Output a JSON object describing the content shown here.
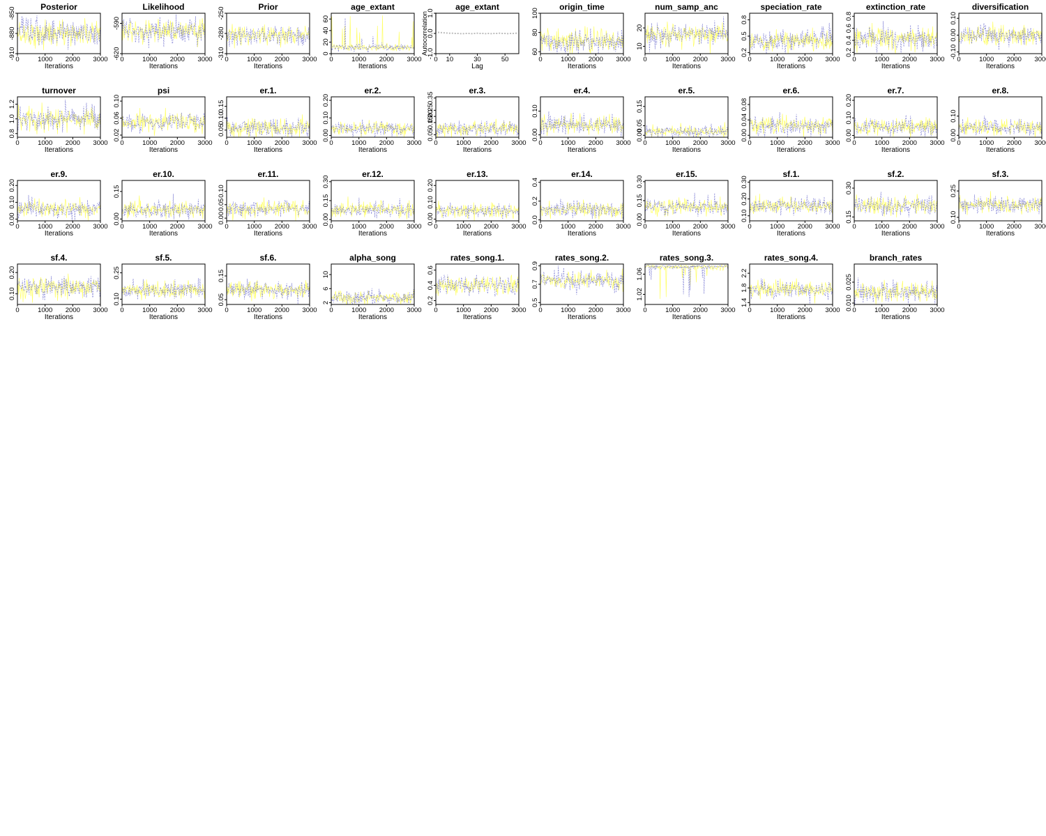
{
  "colors": {
    "chain1": "#ffff55",
    "chain2": "#6666cc",
    "acf_points": "#bbbbbb",
    "axis": "#000000"
  },
  "chart_data": [
    {
      "type": "line",
      "title": "Posterior",
      "xlabel": "Iterations",
      "xlim": [
        0,
        3000
      ],
      "xticks": [
        "0",
        "1000",
        "2000",
        "3000"
      ],
      "ylim": [
        -910,
        -850
      ],
      "yticks": [
        "-910",
        "-880",
        "-850"
      ],
      "center": -880,
      "spread": 10,
      "chains": 2
    },
    {
      "type": "line",
      "title": "Likelihood",
      "xlabel": "Iterations",
      "xlim": [
        0,
        3000
      ],
      "xticks": [
        "0",
        "1000",
        "2000",
        "3000"
      ],
      "ylim": [
        -620,
        -580
      ],
      "yticks": [
        "-620",
        "-590"
      ],
      "center": -597,
      "spread": 6,
      "chains": 2
    },
    {
      "type": "line",
      "title": "Prior",
      "xlabel": "Iterations",
      "xlim": [
        0,
        3000
      ],
      "xticks": [
        "0",
        "1000",
        "2000",
        "3000"
      ],
      "ylim": [
        -310,
        -250
      ],
      "yticks": [
        "-310",
        "-280",
        "-250"
      ],
      "center": -283,
      "spread": 7,
      "chains": 2
    },
    {
      "type": "line",
      "title": "age_extant",
      "xlabel": "Iterations",
      "xlim": [
        0,
        3000
      ],
      "xticks": [
        "0",
        "1000",
        "2000",
        "3000"
      ],
      "ylim": [
        0,
        70
      ],
      "yticks": [
        "0",
        "20",
        "40",
        "60"
      ],
      "center": 11,
      "spread": 3,
      "spikes": true,
      "chains": 2
    },
    {
      "type": "scatter",
      "title": "age_extant",
      "xlabel": "Lag",
      "ylabel": "Autocorrelation",
      "xlim": [
        0,
        60
      ],
      "xticks": [
        "0",
        "10",
        "30",
        "50"
      ],
      "ylim": [
        -1,
        1
      ],
      "yticks": [
        "-1.0",
        "0.0",
        "1.0"
      ],
      "acf": [
        1.0,
        0.05,
        0.04,
        0.03,
        0.02,
        0.01,
        0.01,
        0.0,
        0.0,
        -0.01,
        -0.01,
        0.0,
        0.0,
        -0.01,
        0.0,
        0.01,
        0.0,
        0.0,
        -0.01,
        0.0,
        -0.01,
        0.0,
        0.0,
        0.01,
        0.0,
        0.0,
        -0.01,
        0.0,
        0.0,
        0.01
      ]
    },
    {
      "type": "line",
      "title": "origin_time",
      "xlabel": "Iterations",
      "xlim": [
        0,
        3000
      ],
      "xticks": [
        "0",
        "1000",
        "2000",
        "3000"
      ],
      "ylim": [
        58,
        100
      ],
      "yticks": [
        "60",
        "80",
        "100"
      ],
      "center": 70,
      "spread": 6,
      "chains": 2
    },
    {
      "type": "line",
      "title": "num_samp_anc",
      "xlabel": "Iterations",
      "xlim": [
        0,
        3000
      ],
      "xticks": [
        "0",
        "1000",
        "2000",
        "3000"
      ],
      "ylim": [
        6,
        28
      ],
      "yticks": [
        "10",
        "20"
      ],
      "center": 16,
      "spread": 3,
      "chains": 2
    },
    {
      "type": "line",
      "title": "speciation_rate",
      "xlabel": "Iterations",
      "xlim": [
        0,
        3000
      ],
      "xticks": [
        "0",
        "1000",
        "2000",
        "3000"
      ],
      "ylim": [
        0.18,
        0.92
      ],
      "yticks": [
        "0.2",
        "0.5",
        "0.8"
      ],
      "center": 0.42,
      "spread": 0.1,
      "chains": 2
    },
    {
      "type": "line",
      "title": "extinction_rate",
      "xlabel": "Iterations",
      "xlim": [
        0,
        3000
      ],
      "xticks": [
        "0",
        "1000",
        "2000",
        "3000"
      ],
      "ylim": [
        0.18,
        0.85
      ],
      "yticks": [
        "0.2",
        "0.4",
        "0.6",
        "0.8"
      ],
      "center": 0.42,
      "spread": 0.1,
      "chains": 2
    },
    {
      "type": "line",
      "title": "diversification",
      "xlabel": "Iterations",
      "xlim": [
        0,
        3000
      ],
      "xticks": [
        "0",
        "1000",
        "2000",
        "3000"
      ],
      "ylim": [
        -0.11,
        0.13
      ],
      "yticks": [
        "-0.10",
        "0.00",
        "0.10"
      ],
      "center": 0.0,
      "spread": 0.03,
      "chains": 2
    },
    {
      "type": "line",
      "title": "turnover",
      "xlabel": "Iterations",
      "xlim": [
        0,
        3000
      ],
      "xticks": [
        "0",
        "1000",
        "2000",
        "3000"
      ],
      "ylim": [
        0.75,
        1.3
      ],
      "yticks": [
        "0.8",
        "1.0",
        "1.2"
      ],
      "center": 1.0,
      "spread": 0.08,
      "chains": 2
    },
    {
      "type": "line",
      "title": "psi",
      "xlabel": "Iterations",
      "xlim": [
        0,
        3000
      ],
      "xticks": [
        "0",
        "1000",
        "2000",
        "3000"
      ],
      "ylim": [
        0.015,
        0.11
      ],
      "yticks": [
        "0.02",
        "0.06",
        "0.10"
      ],
      "center": 0.05,
      "spread": 0.012,
      "chains": 2
    },
    {
      "type": "line",
      "title": "er.1.",
      "xlabel": "Iterations",
      "xlim": [
        0,
        3000
      ],
      "xticks": [
        "0",
        "1000",
        "2000",
        "3000"
      ],
      "ylim": [
        0.02,
        0.19
      ],
      "yticks": [
        "0.05",
        "0.10",
        "0.15"
      ],
      "center": 0.06,
      "spread": 0.02,
      "chains": 2
    },
    {
      "type": "line",
      "title": "er.2.",
      "xlabel": "Iterations",
      "xlim": [
        0,
        3000
      ],
      "xticks": [
        "0",
        "1000",
        "2000",
        "3000"
      ],
      "ylim": [
        -0.01,
        0.22
      ],
      "yticks": [
        "0.00",
        "0.10",
        "0.20"
      ],
      "center": 0.04,
      "spread": 0.02,
      "chains": 2
    },
    {
      "type": "line",
      "title": "er.3.",
      "xlabel": "Iterations",
      "xlim": [
        0,
        3000
      ],
      "xticks": [
        "0",
        "1000",
        "2000",
        "3000"
      ],
      "ylim": [
        0.03,
        0.36
      ],
      "yticks": [
        "0.05",
        "0.15",
        "0.20",
        "0.25",
        "0.35"
      ],
      "center": 0.1,
      "spread": 0.035,
      "chains": 2
    },
    {
      "type": "line",
      "title": "er.4.",
      "xlabel": "Iterations",
      "xlim": [
        0,
        3000
      ],
      "xticks": [
        "0",
        "1000",
        "2000",
        "3000"
      ],
      "ylim": [
        -0.01,
        0.16
      ],
      "yticks": [
        "0.00",
        "0.10"
      ],
      "center": 0.04,
      "spread": 0.02,
      "chains": 2
    },
    {
      "type": "line",
      "title": "er.5.",
      "xlabel": "Iterations",
      "xlim": [
        0,
        3000
      ],
      "xticks": [
        "0",
        "1000",
        "2000",
        "3000"
      ],
      "ylim": [
        -0.01,
        0.2
      ],
      "yticks": [
        "0.00",
        "0.05",
        "0.15"
      ],
      "center": 0.02,
      "spread": 0.015,
      "chains": 2
    },
    {
      "type": "line",
      "title": "er.6.",
      "xlabel": "Iterations",
      "xlim": [
        0,
        3000
      ],
      "xticks": [
        "0",
        "1000",
        "2000",
        "3000"
      ],
      "ylim": [
        -0.005,
        0.1
      ],
      "yticks": [
        "0.00",
        "0.04",
        "0.08"
      ],
      "center": 0.025,
      "spread": 0.012,
      "chains": 2
    },
    {
      "type": "line",
      "title": "er.7.",
      "xlabel": "Iterations",
      "xlim": [
        0,
        3000
      ],
      "xticks": [
        "0",
        "1000",
        "2000",
        "3000"
      ],
      "ylim": [
        -0.01,
        0.22
      ],
      "yticks": [
        "0.00",
        "0.10",
        "0.20"
      ],
      "center": 0.05,
      "spread": 0.022,
      "chains": 2
    },
    {
      "type": "line",
      "title": "er.8.",
      "xlabel": "Iterations",
      "xlim": [
        0,
        3000
      ],
      "xticks": [
        "0",
        "1000",
        "2000",
        "3000"
      ],
      "ylim": [
        -0.01,
        0.2
      ],
      "yticks": [
        "0.00",
        "0.10"
      ],
      "center": 0.04,
      "spread": 0.02,
      "chains": 2
    },
    {
      "type": "line",
      "title": "er.9.",
      "xlabel": "Iterations",
      "xlim": [
        0,
        3000
      ],
      "xticks": [
        "0",
        "1000",
        "2000",
        "3000"
      ],
      "ylim": [
        -0.01,
        0.23
      ],
      "yticks": [
        "0.00",
        "0.10",
        "0.20"
      ],
      "center": 0.06,
      "spread": 0.025,
      "chains": 2
    },
    {
      "type": "line",
      "title": "er.10.",
      "xlabel": "Iterations",
      "xlim": [
        0,
        3000
      ],
      "xticks": [
        "0",
        "1000",
        "2000",
        "3000"
      ],
      "ylim": [
        -0.01,
        0.21
      ],
      "yticks": [
        "0.00",
        "0.15"
      ],
      "center": 0.05,
      "spread": 0.022,
      "chains": 2
    },
    {
      "type": "line",
      "title": "er.11.",
      "xlabel": "Iterations",
      "xlim": [
        0,
        3000
      ],
      "xticks": [
        "0",
        "1000",
        "2000",
        "3000"
      ],
      "ylim": [
        -0.01,
        0.14
      ],
      "yticks": [
        "0.00",
        "0.05",
        "0.10"
      ],
      "center": 0.035,
      "spread": 0.015,
      "chains": 2
    },
    {
      "type": "line",
      "title": "er.12.",
      "xlabel": "Iterations",
      "xlim": [
        0,
        3000
      ],
      "xticks": [
        "0",
        "1000",
        "2000",
        "3000"
      ],
      "ylim": [
        -0.01,
        0.31
      ],
      "yticks": [
        "0.00",
        "0.15",
        "0.30"
      ],
      "center": 0.08,
      "spread": 0.03,
      "chains": 2
    },
    {
      "type": "line",
      "title": "er.13.",
      "xlabel": "Iterations",
      "xlim": [
        0,
        3000
      ],
      "xticks": [
        "0",
        "1000",
        "2000",
        "3000"
      ],
      "ylim": [
        -0.01,
        0.23
      ],
      "yticks": [
        "0.00",
        "0.10",
        "0.20"
      ],
      "center": 0.05,
      "spread": 0.022,
      "chains": 2
    },
    {
      "type": "line",
      "title": "er.14.",
      "xlabel": "Iterations",
      "xlim": [
        0,
        3000
      ],
      "xticks": [
        "0",
        "1000",
        "2000",
        "3000"
      ],
      "ylim": [
        -0.01,
        0.42
      ],
      "yticks": [
        "0.0",
        "0.2",
        "0.4"
      ],
      "center": 0.11,
      "spread": 0.045,
      "chains": 2
    },
    {
      "type": "line",
      "title": "er.15.",
      "xlabel": "Iterations",
      "xlim": [
        0,
        3000
      ],
      "xticks": [
        "0",
        "1000",
        "2000",
        "3000"
      ],
      "ylim": [
        -0.01,
        0.31
      ],
      "yticks": [
        "0.00",
        "0.15",
        "0.30"
      ],
      "center": 0.1,
      "spread": 0.035,
      "chains": 2
    },
    {
      "type": "line",
      "title": "sf.1.",
      "xlabel": "Iterations",
      "xlim": [
        0,
        3000
      ],
      "xticks": [
        "0",
        "1000",
        "2000",
        "3000"
      ],
      "ylim": [
        0.07,
        0.31
      ],
      "yticks": [
        "0.10",
        "0.20",
        "0.30"
      ],
      "center": 0.16,
      "spread": 0.025,
      "chains": 2
    },
    {
      "type": "line",
      "title": "sf.2.",
      "xlabel": "Iterations",
      "xlim": [
        0,
        3000
      ],
      "xticks": [
        "0",
        "1000",
        "2000",
        "3000"
      ],
      "ylim": [
        0.13,
        0.34
      ],
      "yticks": [
        "0.15",
        "0.30"
      ],
      "center": 0.21,
      "spread": 0.025,
      "chains": 2
    },
    {
      "type": "line",
      "title": "sf.3.",
      "xlabel": "Iterations",
      "xlim": [
        0,
        3000
      ],
      "xticks": [
        "0",
        "1000",
        "2000",
        "3000"
      ],
      "ylim": [
        0.08,
        0.31
      ],
      "yticks": [
        "0.10",
        "0.25"
      ],
      "center": 0.17,
      "spread": 0.025,
      "chains": 2
    },
    {
      "type": "line",
      "title": "sf.4.",
      "xlabel": "Iterations",
      "xlim": [
        0,
        3000
      ],
      "xticks": [
        "0",
        "1000",
        "2000",
        "3000"
      ],
      "ylim": [
        0.05,
        0.24
      ],
      "yticks": [
        "0.10",
        "0.20"
      ],
      "center": 0.13,
      "spread": 0.025,
      "chains": 2
    },
    {
      "type": "line",
      "title": "sf.5.",
      "xlabel": "Iterations",
      "xlim": [
        0,
        3000
      ],
      "xticks": [
        "0",
        "1000",
        "2000",
        "3000"
      ],
      "ylim": [
        0.07,
        0.3
      ],
      "yticks": [
        "0.10",
        "0.25"
      ],
      "center": 0.15,
      "spread": 0.025,
      "chains": 2
    },
    {
      "type": "line",
      "title": "sf.6.",
      "xlabel": "Iterations",
      "xlim": [
        0,
        3000
      ],
      "xticks": [
        "0",
        "1000",
        "2000",
        "3000"
      ],
      "ylim": [
        0.03,
        0.2
      ],
      "yticks": [
        "0.05",
        "0.15"
      ],
      "center": 0.09,
      "spread": 0.02,
      "chains": 2
    },
    {
      "type": "line",
      "title": "alpha_song",
      "xlabel": "Iterations",
      "xlim": [
        0,
        3000
      ],
      "xticks": [
        "0",
        "1000",
        "2000",
        "3000"
      ],
      "ylim": [
        1.5,
        13
      ],
      "yticks": [
        "2",
        "6",
        "10"
      ],
      "center": 3.5,
      "spread": 1.0,
      "chains": 2
    },
    {
      "type": "line",
      "title": "rates_song.1.",
      "xlabel": "Iterations",
      "xlim": [
        0,
        3000
      ],
      "xticks": [
        "0",
        "1000",
        "2000",
        "3000"
      ],
      "ylim": [
        0.15,
        0.68
      ],
      "yticks": [
        "0.2",
        "0.4",
        "0.6"
      ],
      "center": 0.4,
      "spread": 0.06,
      "chains": 2
    },
    {
      "type": "line",
      "title": "rates_song.2.",
      "xlabel": "Iterations",
      "xlim": [
        0,
        3000
      ],
      "xticks": [
        "0",
        "1000",
        "2000",
        "3000"
      ],
      "ylim": [
        0.48,
        0.92
      ],
      "yticks": [
        "0.5",
        "0.7",
        "0.9"
      ],
      "center": 0.74,
      "spread": 0.05,
      "chains": 2
    },
    {
      "type": "line",
      "title": "rates_song.3.",
      "xlabel": "Iterations",
      "xlim": [
        0,
        3000
      ],
      "xticks": [
        "0",
        "1000",
        "2000",
        "3000"
      ],
      "ylim": [
        1.0,
        1.08
      ],
      "yticks": [
        "1.02",
        "1.06"
      ],
      "center": 1.075,
      "spread": 0.004,
      "ceiling": 1.078,
      "chains": 2
    },
    {
      "type": "line",
      "title": "rates_song.4.",
      "xlabel": "Iterations",
      "xlim": [
        0,
        3000
      ],
      "xticks": [
        "0",
        "1000",
        "2000",
        "3000"
      ],
      "ylim": [
        1.35,
        2.45
      ],
      "yticks": [
        "1.4",
        "1.8",
        "2.2"
      ],
      "center": 1.75,
      "spread": 0.12,
      "chains": 2
    },
    {
      "type": "line",
      "title": "branch_rates",
      "xlabel": "Iterations",
      "xlim": [
        0,
        3000
      ],
      "xticks": [
        "0",
        "1000",
        "2000",
        "3000"
      ],
      "ylim": [
        0.009,
        0.038
      ],
      "yticks": [
        "0.010",
        "0.025"
      ],
      "center": 0.018,
      "spread": 0.004,
      "chains": 2
    }
  ]
}
